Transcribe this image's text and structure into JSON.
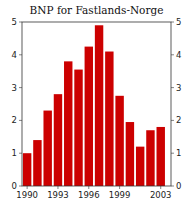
{
  "chart_data": {
    "type": "bar",
    "title": "BNP for Fastlands-Norge",
    "x": [
      1990,
      1991,
      1992,
      1993,
      1994,
      1995,
      1996,
      1997,
      1998,
      1999,
      2000,
      2001,
      2002,
      2003
    ],
    "values": [
      1.0,
      1.4,
      2.3,
      2.8,
      3.8,
      3.55,
      4.25,
      4.9,
      4.1,
      2.75,
      1.95,
      1.2,
      1.7,
      1.8
    ],
    "color": "#cc0000",
    "xlim": [
      1989.5,
      2004.0
    ],
    "xticks": [
      1990,
      1993,
      1996,
      1999,
      2003
    ],
    "ylim": [
      0,
      5
    ],
    "yticks": [
      0,
      1,
      2,
      3,
      4,
      5
    ],
    "y2lim": [
      0,
      5
    ],
    "y2ticks": [
      0,
      1,
      2,
      3,
      4,
      5
    ],
    "grid": false
  }
}
